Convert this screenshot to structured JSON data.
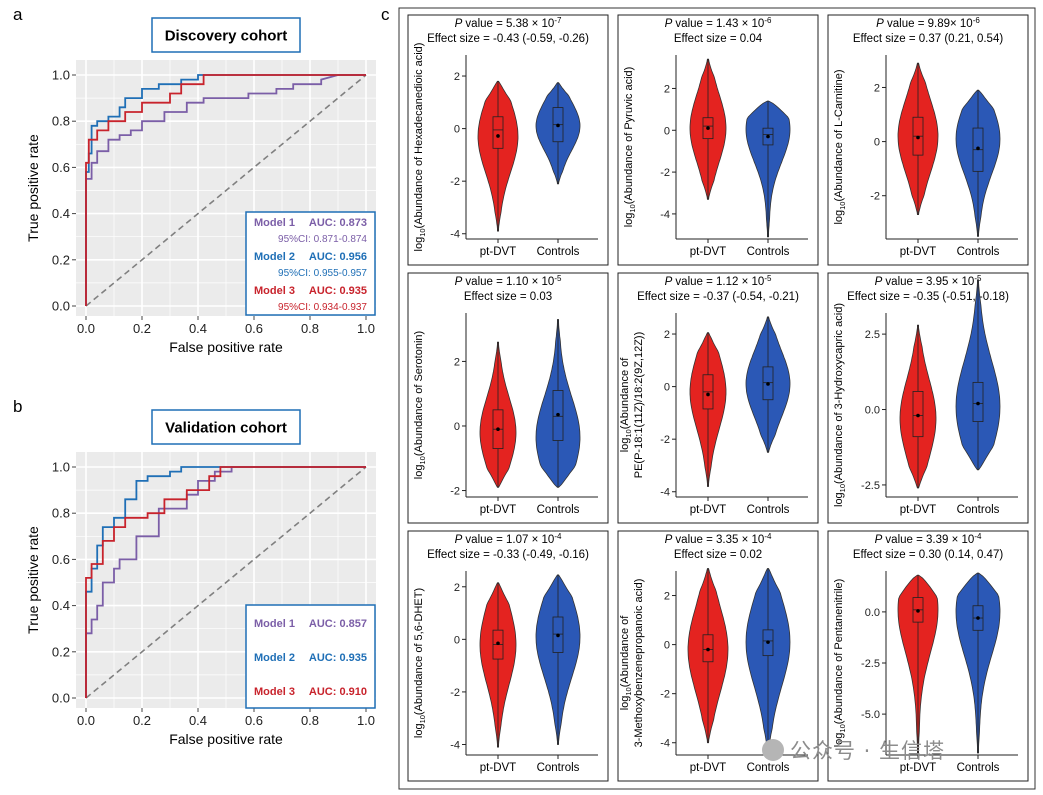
{
  "panel_labels": {
    "a": "a",
    "b": "b",
    "c": "c"
  },
  "colors": {
    "model1": "#7b5ea7",
    "model2": "#1f6fb6",
    "model3": "#c8232c",
    "ptdvt": "#e42320",
    "controls": "#2b58b6",
    "roc_bg": "#ebebeb"
  },
  "chart_data": [
    {
      "type": "line",
      "id": "roc_discovery",
      "title": "Discovery cohort",
      "xlabel": "False positive rate",
      "ylabel": "True positive rate",
      "xlim": [
        0,
        1
      ],
      "ylim": [
        0,
        1
      ],
      "xticks": [
        "0.0",
        "0.2",
        "0.4",
        "0.6",
        "0.8",
        "1.0"
      ],
      "yticks": [
        "0.0",
        "0.2",
        "0.4",
        "0.6",
        "0.8",
        "1.0"
      ],
      "series": [
        {
          "name": "Model 1",
          "auc_label": "AUC: 0.873",
          "ci": "95%CI: 0.871-0.874",
          "fpr": [
            0,
            0,
            0.02,
            0.02,
            0.04,
            0.04,
            0.08,
            0.08,
            0.12,
            0.12,
            0.16,
            0.16,
            0.2,
            0.2,
            0.28,
            0.28,
            0.36,
            0.36,
            0.42,
            0.42,
            0.58,
            0.58,
            0.68,
            0.68,
            0.74,
            0.74,
            0.84,
            0.84,
            0.9,
            1
          ],
          "tpr": [
            0,
            0.55,
            0.55,
            0.62,
            0.62,
            0.67,
            0.67,
            0.72,
            0.72,
            0.74,
            0.74,
            0.76,
            0.76,
            0.8,
            0.8,
            0.84,
            0.84,
            0.88,
            0.88,
            0.9,
            0.9,
            0.92,
            0.92,
            0.94,
            0.94,
            0.96,
            0.96,
            0.98,
            1,
            1
          ]
        },
        {
          "name": "Model 2",
          "auc_label": "AUC: 0.956",
          "ci": "95%CI: 0.955-0.957",
          "fpr": [
            0,
            0,
            0.01,
            0.01,
            0.02,
            0.02,
            0.04,
            0.04,
            0.08,
            0.08,
            0.12,
            0.12,
            0.14,
            0.14,
            0.2,
            0.2,
            0.26,
            0.26,
            0.34,
            0.34,
            0.4,
            0.4,
            1
          ],
          "tpr": [
            0,
            0.58,
            0.58,
            0.66,
            0.66,
            0.78,
            0.78,
            0.8,
            0.8,
            0.82,
            0.82,
            0.86,
            0.86,
            0.9,
            0.9,
            0.94,
            0.94,
            0.96,
            0.96,
            0.98,
            0.98,
            1,
            1
          ]
        },
        {
          "name": "Model 3",
          "auc_label": "AUC: 0.935",
          "ci": "95%CI: 0.934-0.937",
          "fpr": [
            0,
            0,
            0.01,
            0.01,
            0.04,
            0.04,
            0.08,
            0.08,
            0.14,
            0.14,
            0.2,
            0.2,
            0.3,
            0.3,
            0.34,
            0.34,
            0.42,
            0.42,
            1
          ],
          "tpr": [
            0,
            0.62,
            0.62,
            0.72,
            0.72,
            0.76,
            0.76,
            0.8,
            0.8,
            0.84,
            0.84,
            0.88,
            0.88,
            0.92,
            0.92,
            0.96,
            0.96,
            1,
            1
          ]
        }
      ]
    },
    {
      "type": "line",
      "id": "roc_validation",
      "title": "Validation cohort",
      "xlabel": "False positive rate",
      "ylabel": "True positive rate",
      "xlim": [
        0,
        1
      ],
      "ylim": [
        0,
        1
      ],
      "xticks": [
        "0.0",
        "0.2",
        "0.4",
        "0.6",
        "0.8",
        "1.0"
      ],
      "yticks": [
        "0.0",
        "0.2",
        "0.4",
        "0.6",
        "0.8",
        "1.0"
      ],
      "series": [
        {
          "name": "Model 1",
          "auc_label": "AUC: 0.857",
          "fpr": [
            0,
            0,
            0.02,
            0.02,
            0.04,
            0.04,
            0.06,
            0.06,
            0.1,
            0.1,
            0.12,
            0.12,
            0.18,
            0.18,
            0.26,
            0.26,
            0.36,
            0.36,
            0.4,
            0.4,
            0.46,
            0.46,
            0.52,
            0.52,
            1
          ],
          "tpr": [
            0,
            0.28,
            0.28,
            0.34,
            0.34,
            0.4,
            0.4,
            0.5,
            0.5,
            0.56,
            0.56,
            0.6,
            0.6,
            0.7,
            0.7,
            0.82,
            0.82,
            0.88,
            0.88,
            0.94,
            0.94,
            0.98,
            0.98,
            1,
            1
          ]
        },
        {
          "name": "Model 2",
          "auc_label": "AUC: 0.935",
          "fpr": [
            0,
            0,
            0.02,
            0.02,
            0.04,
            0.04,
            0.06,
            0.06,
            0.1,
            0.1,
            0.14,
            0.14,
            0.18,
            0.18,
            0.22,
            0.22,
            0.3,
            0.3,
            0.34,
            0.34,
            1
          ],
          "tpr": [
            0,
            0.46,
            0.46,
            0.56,
            0.56,
            0.66,
            0.66,
            0.74,
            0.74,
            0.78,
            0.78,
            0.86,
            0.86,
            0.94,
            0.94,
            0.96,
            0.96,
            0.98,
            0.98,
            1,
            1
          ]
        },
        {
          "name": "Model 3",
          "auc_label": "AUC: 0.910",
          "fpr": [
            0,
            0,
            0.02,
            0.02,
            0.06,
            0.06,
            0.1,
            0.1,
            0.14,
            0.14,
            0.22,
            0.22,
            0.28,
            0.28,
            0.36,
            0.36,
            0.44,
            0.44,
            0.48,
            0.48,
            1
          ],
          "tpr": [
            0,
            0.52,
            0.52,
            0.58,
            0.58,
            0.68,
            0.68,
            0.74,
            0.74,
            0.78,
            0.78,
            0.8,
            0.8,
            0.86,
            0.86,
            0.9,
            0.9,
            0.96,
            0.96,
            1,
            1
          ]
        }
      ]
    },
    {
      "type": "violin",
      "id": "violin_panels",
      "categories": [
        "pt-DVT",
        "Controls"
      ],
      "panels": [
        {
          "p_prefix": "P",
          "p_value": " value = 5.38 × 10",
          "p_exp": "-7",
          "effect": "Effect size = -0.43 (-0.59, -0.26)",
          "ylabel_pre": "log",
          "ylabel_sub": "10",
          "ylabel_lines": [
            "(Abundance of Hexadecanedioic acid)"
          ],
          "ylim": [
            -4.2,
            2.8
          ],
          "ticks": [
            -4,
            -2,
            0,
            2
          ],
          "tick_labels": [
            "-4",
            "-2",
            "0",
            "2"
          ],
          "groups": [
            {
              "min": -3.9,
              "max": 1.8,
              "q1": -0.75,
              "median": -0.05,
              "q3": 0.45,
              "mean": -0.28,
              "mode": -0.3,
              "width": 0.5
            },
            {
              "min": -2.1,
              "max": 1.75,
              "q1": -0.5,
              "median": 0.15,
              "q3": 0.8,
              "mean": 0.12,
              "mode": 0.1,
              "width": 0.55
            }
          ]
        },
        {
          "p_prefix": "P",
          "p_value": " value = 1.43 × 10",
          "p_exp": "-6",
          "effect": "Effect size = 0.04",
          "ylabel_pre": "log",
          "ylabel_sub": "10",
          "ylabel_lines": [
            "(Abundance of Pyruvic acid)"
          ],
          "ylim": [
            -5.2,
            3.6
          ],
          "ticks": [
            -4,
            -2,
            0,
            2
          ],
          "tick_labels": [
            "-4",
            "-2",
            "0",
            "2"
          ],
          "groups": [
            {
              "min": -3.3,
              "max": 3.4,
              "q1": -0.4,
              "median": 0.2,
              "q3": 0.6,
              "mean": 0.1,
              "mode": 0.1,
              "width": 0.45
            },
            {
              "min": -5.1,
              "max": 1.4,
              "q1": -0.7,
              "median": -0.2,
              "q3": 0.1,
              "mean": -0.3,
              "mode": 0.05,
              "width": 0.55
            }
          ]
        },
        {
          "p_prefix": "P",
          "p_value": " value = 9.89× 10",
          "p_exp": "-6",
          "effect": "Effect size = 0.37 (0.21, 0.54)",
          "ylabel_pre": "log",
          "ylabel_sub": "10",
          "ylabel_lines": [
            "(Abundance of L-Carnitine)"
          ],
          "ylim": [
            -3.6,
            3.2
          ],
          "ticks": [
            -2,
            0,
            2
          ],
          "tick_labels": [
            "-2",
            "0",
            "2"
          ],
          "groups": [
            {
              "min": -2.7,
              "max": 2.9,
              "q1": -0.5,
              "median": 0.2,
              "q3": 0.9,
              "mean": 0.15,
              "mode": 0.2,
              "width": 0.5
            },
            {
              "min": -3.5,
              "max": 1.9,
              "q1": -1.1,
              "median": -0.3,
              "q3": 0.5,
              "mean": -0.25,
              "mode": 0.1,
              "width": 0.55
            }
          ]
        },
        {
          "p_prefix": "P",
          "p_value": " value = 1.10 × 10",
          "p_exp": "-5",
          "effect": "Effect size = 0.03",
          "ylabel_pre": "log",
          "ylabel_sub": "10",
          "ylabel_lines": [
            "(Abundance of Serotonin)"
          ],
          "ylim": [
            -2.2,
            3.5
          ],
          "ticks": [
            -2,
            0,
            2
          ],
          "tick_labels": [
            "-2",
            "0",
            "2"
          ],
          "groups": [
            {
              "min": -1.9,
              "max": 2.6,
              "q1": -0.7,
              "median": -0.1,
              "q3": 0.5,
              "mean": -0.1,
              "mode": -0.2,
              "width": 0.45
            },
            {
              "min": -1.9,
              "max": 3.3,
              "q1": -0.45,
              "median": 0.3,
              "q3": 1.1,
              "mean": 0.35,
              "mode": -0.35,
              "width": 0.55
            }
          ]
        },
        {
          "p_prefix": "P",
          "p_value": " value = 1.12 × 10",
          "p_exp": "-5",
          "effect": "Effect size = -0.37 (-0.54, -0.21)",
          "ylabel_pre": "log",
          "ylabel_sub": "10",
          "ylabel_lines": [
            "(Abundance of",
            "PE(P-18:1(11Z)/18:2(9Z,12Z))"
          ],
          "ylim": [
            -4.2,
            2.8
          ],
          "ticks": [
            -4,
            -2,
            0,
            2
          ],
          "tick_labels": [
            "-4",
            "-2",
            "0",
            "2"
          ],
          "groups": [
            {
              "min": -3.8,
              "max": 2.05,
              "q1": -0.85,
              "median": -0.2,
              "q3": 0.45,
              "mean": -0.3,
              "mode": -0.2,
              "width": 0.45
            },
            {
              "min": -2.5,
              "max": 2.65,
              "q1": -0.5,
              "median": 0.15,
              "q3": 0.75,
              "mean": 0.1,
              "mode": 0.1,
              "width": 0.55
            }
          ]
        },
        {
          "p_prefix": "P",
          "p_value": " value = 3.95 × 10",
          "p_exp": "-5",
          "effect": "Effect size = -0.35 (-0.51, -0.18)",
          "ylabel_pre": "log",
          "ylabel_sub": "10",
          "ylabel_lines": [
            "(Abundance of 3-Hydroxycapric acid)"
          ],
          "ylim": [
            -2.9,
            3.2
          ],
          "ticks": [
            -2.5,
            0,
            2.5
          ],
          "tick_labels": [
            "-2.5",
            "0.0",
            "2.5"
          ],
          "groups": [
            {
              "min": -2.6,
              "max": 2.8,
              "q1": -0.9,
              "median": -0.2,
              "q3": 0.6,
              "mean": -0.2,
              "mode": -0.3,
              "width": 0.45
            },
            {
              "min": -2.0,
              "max": 4.3,
              "q1": -0.4,
              "median": 0.2,
              "q3": 0.9,
              "mean": 0.2,
              "mode": 0.1,
              "width": 0.55
            }
          ]
        },
        {
          "p_prefix": "P",
          "p_value": " value = 1.07 × 10",
          "p_exp": "-4",
          "effect": "Effect size = -0.33 (-0.49, -0.16)",
          "ylabel_pre": "log",
          "ylabel_sub": "10",
          "ylabel_lines": [
            "(Abundance of 5,6-DHET)"
          ],
          "ylim": [
            -4.4,
            2.6
          ],
          "ticks": [
            -4,
            -2,
            0,
            2
          ],
          "tick_labels": [
            "-4",
            "-2",
            "0",
            "2"
          ],
          "groups": [
            {
              "min": -4.1,
              "max": 2.15,
              "q1": -0.75,
              "median": -0.2,
              "q3": 0.35,
              "mean": -0.15,
              "mode": -0.2,
              "width": 0.45
            },
            {
              "min": -4.0,
              "max": 2.45,
              "q1": -0.5,
              "median": 0.2,
              "q3": 0.85,
              "mean": 0.15,
              "mode": 0.1,
              "width": 0.55
            }
          ]
        },
        {
          "p_prefix": "P",
          "p_value": " value = 3.35 × 10",
          "p_exp": "-4",
          "effect": "Effect size = 0.02",
          "ylabel_pre": "log",
          "ylabel_sub": "10",
          "ylabel_lines": [
            "(Abundance of",
            "3-Methoxybenzenepropanoic acid)"
          ],
          "ylim": [
            -4.5,
            3.0
          ],
          "ticks": [
            -4,
            -2,
            0,
            2
          ],
          "tick_labels": [
            "-4",
            "-2",
            "0",
            "2"
          ],
          "groups": [
            {
              "min": -4.0,
              "max": 3.1,
              "q1": -0.7,
              "median": -0.2,
              "q3": 0.4,
              "mean": -0.2,
              "mode": -0.2,
              "width": 0.5
            },
            {
              "min": -4.4,
              "max": 3.1,
              "q1": -0.45,
              "median": 0.15,
              "q3": 0.6,
              "mean": 0.1,
              "mode": 0.1,
              "width": 0.55
            }
          ]
        },
        {
          "p_prefix": "P",
          "p_value": " value = 3.39 × 10",
          "p_exp": "-4",
          "effect": "Effect size = 0.30 (0.14, 0.47)",
          "ylabel_pre": "log",
          "ylabel_sub": "10",
          "ylabel_lines": [
            "(Abundance of Pentanenitrile)"
          ],
          "ylim": [
            -7.0,
            2.0
          ],
          "ticks": [
            -5,
            -2.5,
            0
          ],
          "tick_labels": [
            "-5.0",
            "-2.5",
            "0.0"
          ],
          "groups": [
            {
              "min": -6.9,
              "max": 1.8,
              "q1": -0.5,
              "median": 0.1,
              "q3": 0.7,
              "mean": 0.05,
              "mode": 0.1,
              "width": 0.5
            },
            {
              "min": -6.9,
              "max": 1.9,
              "q1": -0.9,
              "median": -0.3,
              "q3": 0.3,
              "mean": -0.3,
              "mode": 0.0,
              "width": 0.55
            }
          ]
        }
      ]
    }
  ],
  "watermark": "公众号 · 生信塔"
}
